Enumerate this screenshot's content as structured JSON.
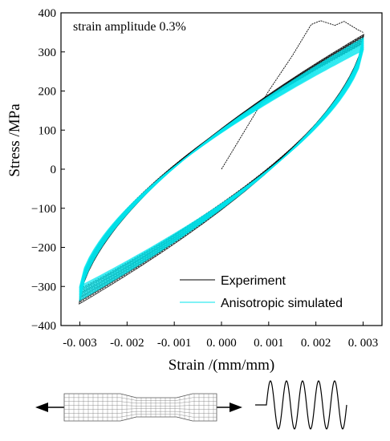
{
  "chart_data": {
    "type": "line",
    "title": "",
    "annotation": "strain amplitude 0.3%",
    "xlabel": "Strain /(mm/mm)",
    "ylabel": "Stress /MPa",
    "xlim": [
      -0.0034,
      0.0034
    ],
    "ylim": [
      -400,
      400
    ],
    "xticks": [
      -0.003,
      -0.002,
      -0.001,
      0.0,
      0.001,
      0.002,
      0.003
    ],
    "xtick_labels": [
      "-0. 003",
      "-0. 002",
      "-0. 001",
      "0. 000",
      "0. 001",
      "0. 002",
      "0. 003"
    ],
    "yticks": [
      -400,
      -300,
      -200,
      -100,
      0,
      100,
      200,
      300,
      400
    ],
    "ytick_labels": [
      "−400",
      "−300",
      "−200",
      "−100",
      "0",
      "100",
      "200",
      "300",
      "400"
    ],
    "grid": false,
    "legend_position": "bottom-right",
    "series": [
      {
        "name": "Experiment",
        "color": "#000000",
        "initial_loading": [
          {
            "x": 0.0,
            "y": 0
          },
          {
            "x": 0.0005,
            "y": 100
          },
          {
            "x": 0.001,
            "y": 200
          },
          {
            "x": 0.0015,
            "y": 290
          },
          {
            "x": 0.0019,
            "y": 370
          },
          {
            "x": 0.0021,
            "y": 380
          },
          {
            "x": 0.0024,
            "y": 368
          },
          {
            "x": 0.0026,
            "y": 378
          },
          {
            "x": 0.0029,
            "y": 356
          },
          {
            "x": 0.003,
            "y": 350
          }
        ],
        "loop": {
          "strain_amplitude": 0.003,
          "peak_stress_range": [
            320,
            345
          ],
          "valley_stress_range": [
            -345,
            -305
          ],
          "stress_at_zero_strain_unloading": 150,
          "stress_at_zero_strain_loading": -150
        }
      },
      {
        "name": "Anisotropic simulated",
        "color": "#00e5ee",
        "loop": {
          "strain_amplitude": 0.003,
          "peak_stress_range": [
            305,
            335
          ],
          "valley_stress_range": [
            -335,
            -300
          ],
          "stress_at_zero_strain_unloading": 145,
          "stress_at_zero_strain_loading": -145
        }
      }
    ]
  },
  "schematic": {
    "specimen_icon": "dogbone-specimen-mesh-icon",
    "arrow_icon": "double-headed-tension-arrow-icon",
    "waveform_icon": "sine-wave-loading-icon",
    "waveform_cycles": 5
  }
}
